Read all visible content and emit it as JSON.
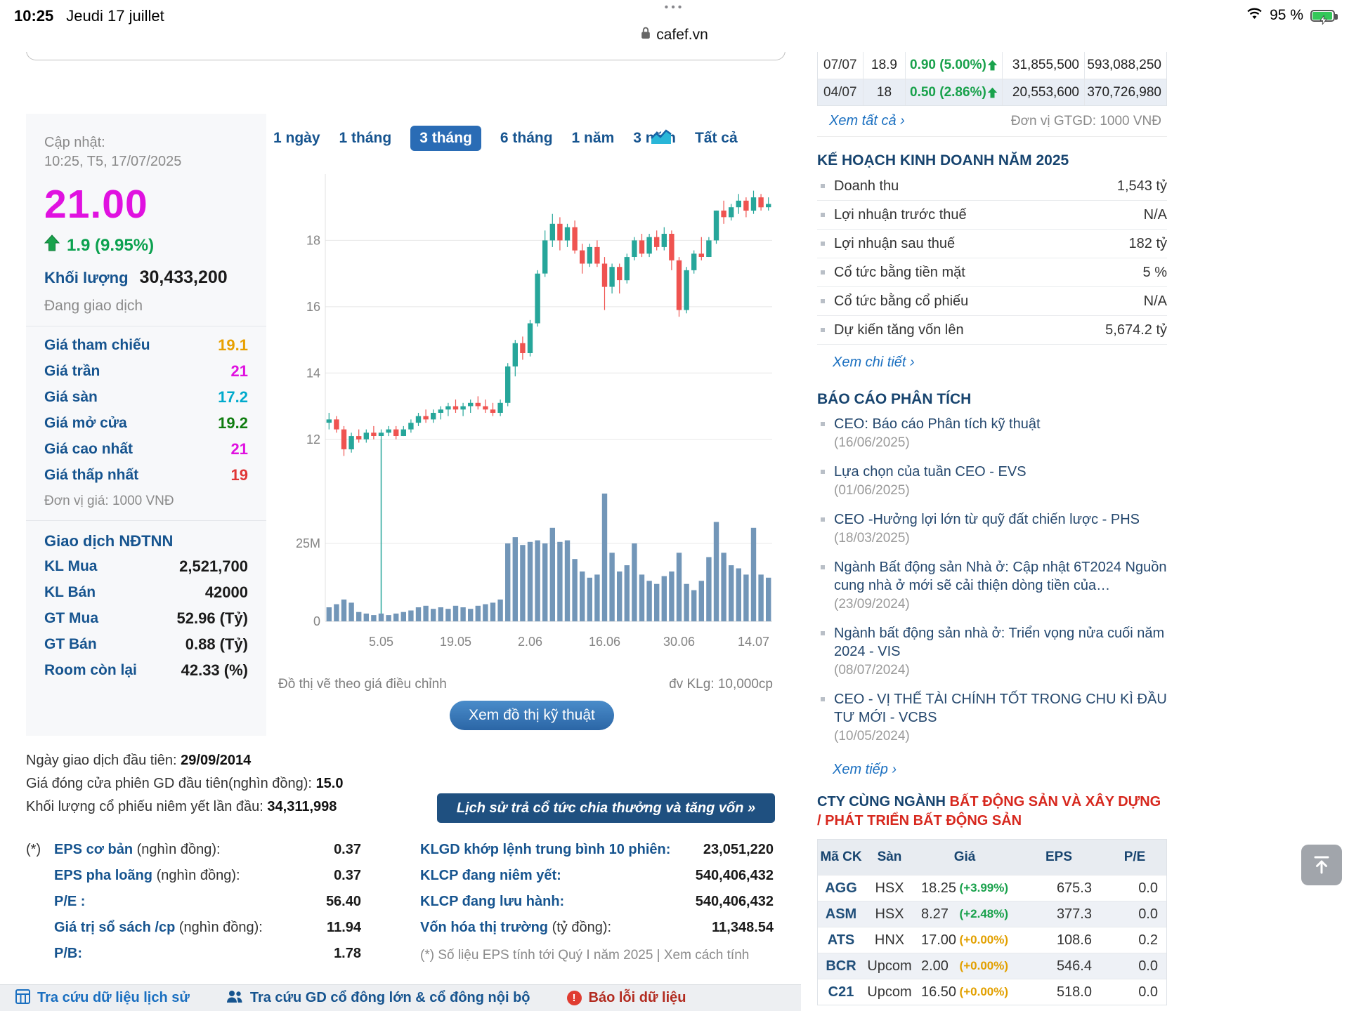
{
  "status_bar": {
    "time": "10:25",
    "date": "Jeudi 17 juillet",
    "dots": "•••",
    "url": "cafef.vn",
    "battery": "95 %"
  },
  "colors": {
    "accent_blue": "#2a6cb5",
    "link_blue": "#1a6fc0",
    "label_navy": "#16548f",
    "up_green": "#18a14b",
    "ceiling_magenta": "#e011e0",
    "floor_cyan": "#00aacc",
    "reference_orange": "#e8a000",
    "down_red": "#e03535",
    "zero_change_amber": "#e2a000"
  },
  "quote": {
    "updated_label": "Cập nhật:",
    "updated_time": "10:25, T5, 17/07/2025",
    "price": "21.00",
    "change": "1.9 (9.95%)",
    "volume_label": "Khối lượng",
    "volume": "30,433,200",
    "session_status": "Đang giao dịch",
    "rows": [
      {
        "label": "Giá tham chiếu",
        "value": "19.1",
        "color": "#e8a000"
      },
      {
        "label": "Giá trần",
        "value": "21",
        "color": "#e011e0"
      },
      {
        "label": "Giá sàn",
        "value": "17.2",
        "color": "#00aacc"
      },
      {
        "label": "Giá mở cửa",
        "value": "19.2",
        "color": "#0f7d0f"
      },
      {
        "label": "Giá cao nhất",
        "value": "21",
        "color": "#e011e0"
      },
      {
        "label": "Giá thấp nhất",
        "value": "19",
        "color": "#e03535"
      }
    ],
    "price_unit": "Đơn vị giá: 1000 VNĐ",
    "foreign_title": "Giao dịch NĐTNN",
    "foreign_rows": [
      {
        "label": "KL Mua",
        "value": "2,521,700"
      },
      {
        "label": "KL Bán",
        "value": "42000"
      },
      {
        "label": "GT Mua",
        "value": "52.96 (Tỷ)"
      },
      {
        "label": "GT Bán",
        "value": "0.88 (Tỷ)"
      },
      {
        "label": "Room còn lại",
        "value": "42.33 (%)"
      }
    ]
  },
  "chart": {
    "tabs": [
      "1 ngày",
      "1 tháng",
      "3 tháng",
      "6 tháng",
      "1 năm",
      "3 năm",
      "Tất cả"
    ],
    "selected_index": 2,
    "footnote_left": "Đồ thị vẽ theo giá điều chỉnh",
    "footnote_right": "đv KLg: 10,000cp",
    "tech_button": "Xem đồ thị kỹ thuật"
  },
  "chart_data": {
    "type": "candlestick_with_volume",
    "timeframe": "3 tháng",
    "price_range": [
      11,
      20
    ],
    "price_ticks": [
      12,
      14,
      16,
      18
    ],
    "volume_ticks": [
      {
        "value": 25,
        "label": "25M"
      },
      {
        "value": 0,
        "label": "0"
      }
    ],
    "x_ticks": [
      {
        "index": 7,
        "label": "5.05"
      },
      {
        "index": 17,
        "label": "19.05"
      },
      {
        "index": 27,
        "label": "2.06"
      },
      {
        "index": 37,
        "label": "16.06"
      },
      {
        "index": 47,
        "label": "30.06"
      },
      {
        "index": 57,
        "label": "14.07"
      }
    ],
    "adjustment_marker_index": 7,
    "colors": {
      "up": "#26a69a",
      "down": "#ef5350",
      "volume": "#7296b8",
      "grid": "#e8e8e8"
    },
    "columns": [
      "date",
      "open",
      "high",
      "low",
      "close",
      "volume_millions"
    ],
    "candles": [
      [
        "21/04",
        12.5,
        12.8,
        12.3,
        12.6,
        4.5
      ],
      [
        "22/04",
        12.6,
        12.7,
        12.2,
        12.3,
        5.5
      ],
      [
        "23/04",
        12.3,
        12.4,
        11.5,
        11.7,
        7.0
      ],
      [
        "24/04",
        11.7,
        12.2,
        11.6,
        12.1,
        6.0
      ],
      [
        "25/04",
        12.1,
        12.3,
        11.9,
        12.0,
        3.0
      ],
      [
        "28/04",
        12.0,
        12.3,
        11.9,
        12.2,
        2.5
      ],
      [
        "29/04",
        12.2,
        12.4,
        12.0,
        12.1,
        2.0
      ],
      [
        "05/05",
        12.1,
        12.3,
        12.0,
        12.2,
        2.5
      ],
      [
        "06/05",
        12.2,
        12.4,
        12.1,
        12.3,
        2.0
      ],
      [
        "07/05",
        12.3,
        12.4,
        12.0,
        12.1,
        2.5
      ],
      [
        "08/05",
        12.1,
        12.4,
        12.1,
        12.3,
        3.0
      ],
      [
        "09/05",
        12.3,
        12.6,
        12.2,
        12.5,
        3.5
      ],
      [
        "12/05",
        12.5,
        12.8,
        12.4,
        12.7,
        4.5
      ],
      [
        "13/05",
        12.7,
        12.9,
        12.5,
        12.6,
        5.0
      ],
      [
        "14/05",
        12.6,
        12.9,
        12.5,
        12.8,
        4.0
      ],
      [
        "15/05",
        12.8,
        13.0,
        12.6,
        12.9,
        4.5
      ],
      [
        "16/05",
        12.9,
        13.1,
        12.7,
        13.0,
        4.0
      ],
      [
        "19/05",
        13.0,
        13.2,
        12.8,
        12.9,
        5.0
      ],
      [
        "20/05",
        12.9,
        13.1,
        12.7,
        13.0,
        4.5
      ],
      [
        "21/05",
        13.0,
        13.2,
        12.8,
        13.1,
        4.0
      ],
      [
        "22/05",
        13.1,
        13.3,
        12.9,
        13.0,
        5.0
      ],
      [
        "23/05",
        13.0,
        13.2,
        12.8,
        12.9,
        5.5
      ],
      [
        "26/05",
        12.9,
        13.1,
        12.7,
        12.8,
        6.0
      ],
      [
        "27/05",
        12.8,
        13.2,
        12.7,
        13.1,
        7.0
      ],
      [
        "28/05",
        13.1,
        14.3,
        13.0,
        14.2,
        25.0
      ],
      [
        "29/05",
        14.2,
        15.0,
        13.9,
        14.9,
        27.0
      ],
      [
        "30/05",
        14.9,
        15.1,
        14.4,
        14.6,
        24.5
      ],
      [
        "02/06",
        14.6,
        15.6,
        14.5,
        15.5,
        25.5
      ],
      [
        "03/06",
        15.5,
        17.1,
        15.4,
        17.0,
        26.0
      ],
      [
        "04/06",
        17.0,
        18.3,
        16.9,
        18.0,
        25.0
      ],
      [
        "05/06",
        18.0,
        18.8,
        17.8,
        18.5,
        30.0
      ],
      [
        "06/06",
        18.5,
        18.7,
        17.7,
        18.0,
        25.5
      ],
      [
        "09/06",
        18.0,
        18.5,
        17.8,
        18.4,
        26.0
      ],
      [
        "10/06",
        18.4,
        18.6,
        17.6,
        17.7,
        20.0
      ],
      [
        "11/06",
        17.7,
        17.9,
        17.0,
        17.3,
        16.0
      ],
      [
        "12/06",
        17.3,
        17.9,
        17.2,
        17.8,
        14.0
      ],
      [
        "13/06",
        17.8,
        18.0,
        17.2,
        17.3,
        15.0
      ],
      [
        "16/06",
        17.3,
        17.5,
        15.9,
        16.6,
        41.0
      ],
      [
        "17/06",
        16.6,
        17.3,
        16.4,
        17.2,
        22.0
      ],
      [
        "18/06",
        17.2,
        17.3,
        16.4,
        16.8,
        16.0
      ],
      [
        "19/06",
        16.8,
        17.6,
        16.7,
        17.5,
        18.0
      ],
      [
        "20/06",
        17.5,
        18.1,
        17.4,
        18.0,
        25.0
      ],
      [
        "23/06",
        18.0,
        18.2,
        17.5,
        17.6,
        15.0
      ],
      [
        "24/06",
        17.6,
        18.2,
        17.5,
        18.1,
        13.0
      ],
      [
        "25/06",
        18.1,
        18.3,
        17.7,
        17.8,
        12.0
      ],
      [
        "26/06",
        17.8,
        18.4,
        17.7,
        18.2,
        14.5
      ],
      [
        "27/06",
        18.2,
        18.3,
        17.1,
        17.4,
        16.0
      ],
      [
        "30/06",
        17.4,
        17.5,
        15.7,
        15.9,
        22.0
      ],
      [
        "01/07",
        15.9,
        17.2,
        15.8,
        17.1,
        12.0
      ],
      [
        "02/07",
        17.1,
        17.7,
        17.0,
        17.6,
        10.0
      ],
      [
        "03/07",
        17.6,
        18.1,
        17.4,
        17.5,
        13.0
      ],
      [
        "04/07",
        17.5,
        18.1,
        17.5,
        18.0,
        20.6
      ],
      [
        "07/07",
        18.0,
        18.9,
        17.9,
        18.9,
        31.9
      ],
      [
        "08/07",
        18.9,
        19.2,
        18.5,
        18.7,
        22.0
      ],
      [
        "09/07",
        18.7,
        19.1,
        18.6,
        19.0,
        18.0
      ],
      [
        "10/07",
        19.0,
        19.4,
        18.8,
        19.2,
        17.0
      ],
      [
        "11/07",
        19.2,
        19.3,
        18.7,
        18.9,
        15.0
      ],
      [
        "14/07",
        18.9,
        19.5,
        18.8,
        19.3,
        30.0
      ],
      [
        "15/07",
        19.3,
        19.4,
        18.9,
        19.0,
        15.0
      ],
      [
        "16/07",
        19.0,
        19.3,
        18.9,
        19.1,
        14.0
      ]
    ]
  },
  "listing_info": [
    {
      "label": "Ngày giao dịch đầu tiên: ",
      "value": "29/09/2014"
    },
    {
      "label": "Giá đóng cửa phiên GD đầu tiên(nghìn đồng): ",
      "value": "15.0"
    },
    {
      "label": "Khối lượng cổ phiếu niêm yết lần đầu: ",
      "value": "34,311,998"
    }
  ],
  "dividend_button": "Lịch sử trả cổ tức chia thưởng và tăng vốn »",
  "stats_left": [
    {
      "prefix": "(*)",
      "label": "EPS cơ bản",
      "suffix": " (nghìn đồng):",
      "value": "0.37"
    },
    {
      "prefix": "",
      "label": "EPS pha loãng",
      "suffix": " (nghìn đồng):",
      "value": "0.37"
    },
    {
      "prefix": "",
      "label": "P/E :",
      "suffix": "",
      "value": "56.40"
    },
    {
      "prefix": "",
      "label": "Giá trị sổ sách /cp",
      "suffix": " (nghìn đồng):",
      "value": "11.94"
    },
    {
      "prefix": "",
      "label": "P/B:",
      "suffix": "",
      "value": "1.78"
    }
  ],
  "stats_right": [
    {
      "label": "KLGD khớp lệnh trung bình 10 phiên:",
      "suffix": "",
      "value": "23,051,220"
    },
    {
      "label": "KLCP đang niêm yết:",
      "suffix": "",
      "value": "540,406,432"
    },
    {
      "label": "KLCP đang lưu hành:",
      "suffix": "",
      "value": "540,406,432"
    },
    {
      "label": "Vốn hóa thị trường",
      "suffix": " (tỷ đồng):",
      "value": "11,348.54"
    }
  ],
  "eps_note": "(*) Số liệu EPS tính tới Quý I năm 2025 | Xem cách tính",
  "bottom_bar": {
    "items": [
      {
        "label": "Tra cứu dữ liệu lịch sử"
      },
      {
        "label": "Tra cứu GD cổ đông lớn & cổ đông nội bộ"
      },
      {
        "label": "Báo lỗi dữ liệu"
      }
    ]
  },
  "right_panel": {
    "history": {
      "rows": [
        {
          "date": "07/07",
          "price": "18.9",
          "change": "0.90 (5.00%)",
          "volume": "31,855,500",
          "value": "593,088,250"
        },
        {
          "date": "04/07",
          "price": "18",
          "change": "0.50 (2.86%)",
          "volume": "20,553,600",
          "value": "370,726,980"
        }
      ],
      "view_all": "Xem tất cả ›",
      "unit": "Đơn vị GTGD: 1000 VNĐ"
    },
    "plan": {
      "title": "KẾ HOẠCH KINH DOANH NĂM 2025",
      "rows": [
        {
          "label": "Doanh thu",
          "value": "1,543 tỷ"
        },
        {
          "label": "Lợi nhuận trước thuế",
          "value": "N/A"
        },
        {
          "label": "Lợi nhuận sau thuế",
          "value": "182 tỷ"
        },
        {
          "label": "Cổ tức bằng tiền mặt",
          "value": "5 %"
        },
        {
          "label": "Cổ tức bằng cổ phiếu",
          "value": "N/A"
        },
        {
          "label": "Dự kiến tăng vốn lên",
          "value": "5,674.2 tỷ"
        }
      ],
      "link": "Xem chi tiết ›"
    },
    "reports": {
      "title": "BÁO CÁO PHÂN TÍCH",
      "items": [
        {
          "title": "CEO: Báo cáo Phân tích kỹ thuật",
          "date": "(16/06/2025)"
        },
        {
          "title": "Lựa chọn của tuần CEO - EVS",
          "date": "(01/06/2025)"
        },
        {
          "title": "CEO -Hưởng lợi lớn từ quỹ đất chiến lược - PHS",
          "date": "(18/03/2025)"
        },
        {
          "title": "Ngành Bất động sản Nhà ở: Cập nhật 6T2024 Nguồn cung nhà ở mới sẽ cải thiện dòng tiền của…",
          "date": "(23/09/2024)"
        },
        {
          "title": "Ngành bất động sản nhà ở: Triển vọng nửa cuối năm 2024 - VIS",
          "date": "(08/07/2024)"
        },
        {
          "title": "CEO - VỊ THẾ TÀI CHÍNH TỐT TRONG CHU KÌ ĐẦU TƯ MỚI - VCBS",
          "date": "(10/05/2024)"
        }
      ],
      "link": "Xem tiếp ›"
    },
    "peers": {
      "title_prefix": "CTY CÙNG NGÀNH ",
      "title_red": "BẤT ĐỘNG SẢN VÀ XÂY DỰNG / PHÁT TRIỂN BẤT ĐỘNG SẢN",
      "headers": [
        "Mã CK",
        "Sàn",
        "Giá",
        "EPS",
        "P/E"
      ],
      "rows": [
        {
          "code": "AGG",
          "exchange": "HSX",
          "price": "18.25",
          "change": "(+3.99%)",
          "change_color": "#18a14b",
          "eps": "675.3",
          "pe": "0.0"
        },
        {
          "code": "ASM",
          "exchange": "HSX",
          "price": "8.27",
          "change": "(+2.48%)",
          "change_color": "#18a14b",
          "eps": "377.3",
          "pe": "0.0"
        },
        {
          "code": "ATS",
          "exchange": "HNX",
          "price": "17.00",
          "change": "(+0.00%)",
          "change_color": "#e2a000",
          "eps": "108.6",
          "pe": "0.2"
        },
        {
          "code": "BCR",
          "exchange": "Upcom",
          "price": "2.00",
          "change": "(+0.00%)",
          "change_color": "#e2a000",
          "eps": "546.4",
          "pe": "0.0"
        },
        {
          "code": "C21",
          "exchange": "Upcom",
          "price": "16.50",
          "change": "(+0.00%)",
          "change_color": "#e2a000",
          "eps": "518.0",
          "pe": "0.0"
        }
      ]
    }
  }
}
